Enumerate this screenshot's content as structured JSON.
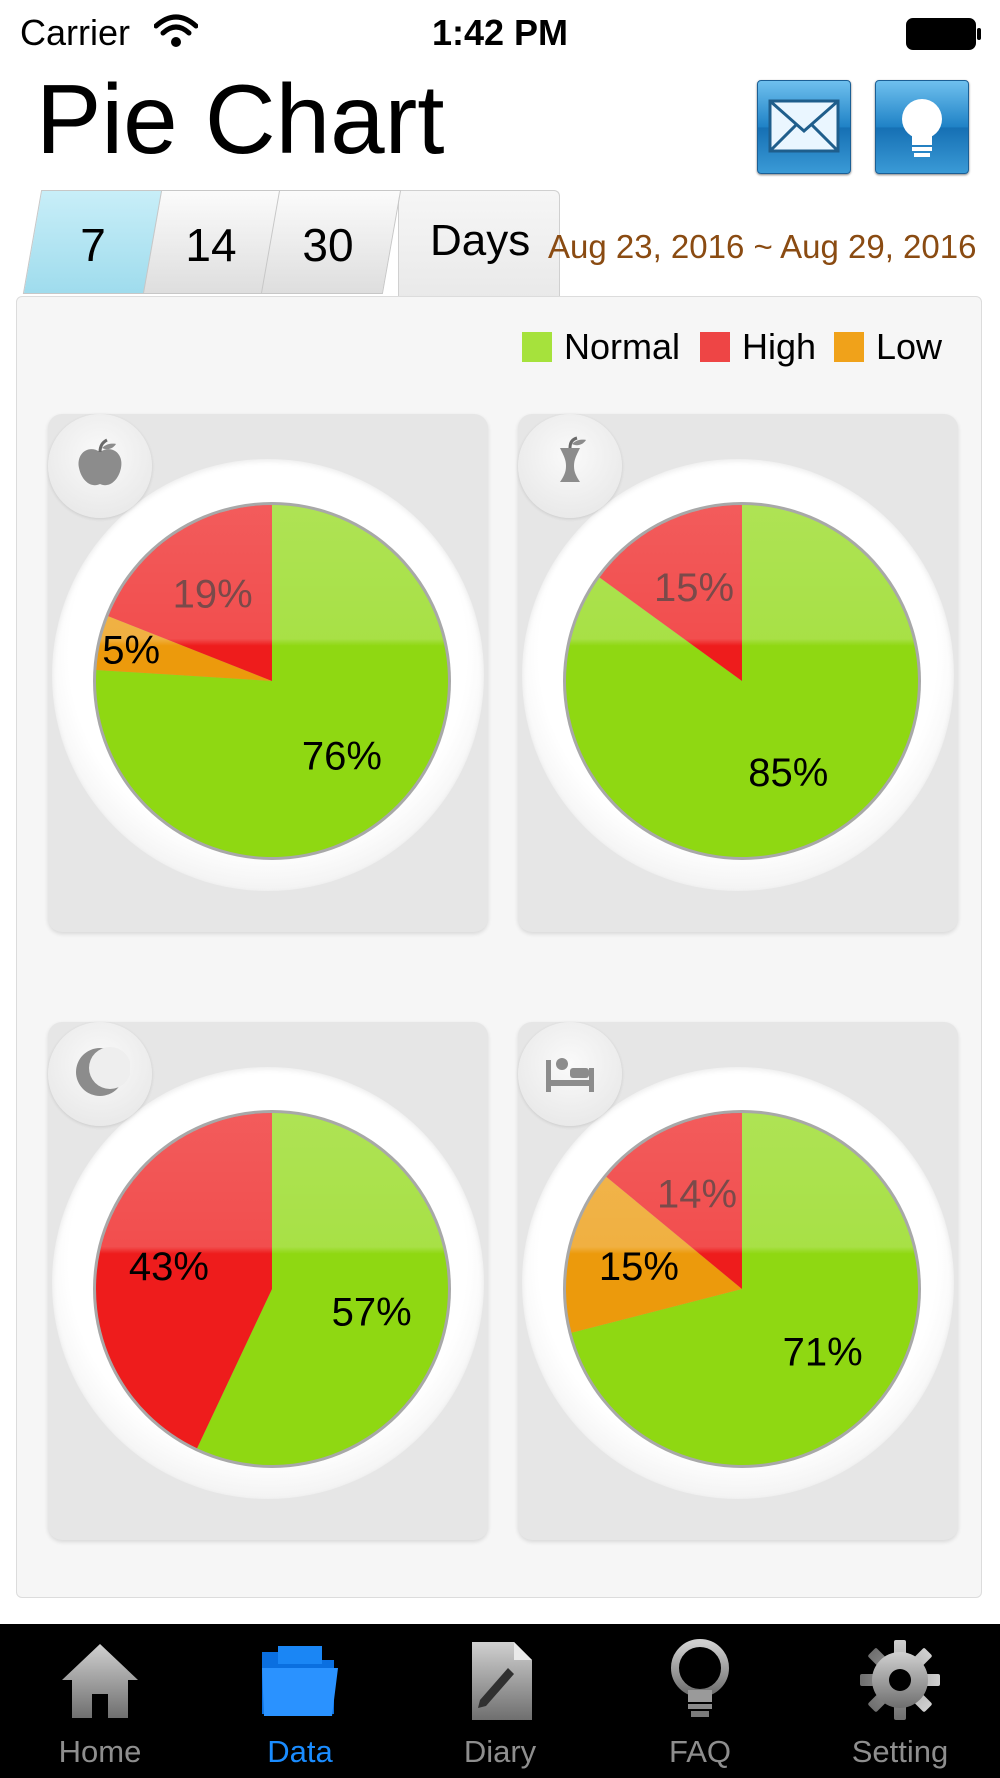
{
  "status_bar": {
    "carrier": "Carrier",
    "time": "1:42 PM"
  },
  "header": {
    "title": "Pie Chart",
    "mail_icon": "mail-icon",
    "tip_icon": "lightbulb-icon"
  },
  "period": {
    "tabs": [
      {
        "label": "7",
        "active": true
      },
      {
        "label": "14",
        "active": false
      },
      {
        "label": "30",
        "active": false
      }
    ],
    "unit": "Days",
    "range": "Aug 23, 2016 ~ Aug 29, 2016"
  },
  "legend": [
    {
      "label": "Normal",
      "color": "#a6e23c"
    },
    {
      "label": "High",
      "color": "#ee4545"
    },
    {
      "label": "Low",
      "color": "#f0a21a"
    }
  ],
  "chart_data": [
    {
      "type": "pie",
      "icon": "apple-icon",
      "slices": [
        {
          "label": "Normal",
          "value": 76,
          "text": "76%"
        },
        {
          "label": "Low",
          "value": 5,
          "text": "5%"
        },
        {
          "label": "High",
          "value": 19,
          "text": "19%"
        }
      ]
    },
    {
      "type": "pie",
      "icon": "apple-core-icon",
      "slices": [
        {
          "label": "Normal",
          "value": 85,
          "text": "85%"
        },
        {
          "label": "High",
          "value": 15,
          "text": "15%"
        }
      ]
    },
    {
      "type": "pie",
      "icon": "moon-icon",
      "slices": [
        {
          "label": "Normal",
          "value": 57,
          "text": "57%"
        },
        {
          "label": "High",
          "value": 43,
          "text": "43%"
        }
      ]
    },
    {
      "type": "pie",
      "icon": "bed-icon",
      "slices": [
        {
          "label": "Normal",
          "value": 71,
          "text": "71%"
        },
        {
          "label": "Low",
          "value": 15,
          "text": "15%"
        },
        {
          "label": "High",
          "value": 14,
          "text": "14%"
        }
      ]
    }
  ],
  "tabbar": [
    {
      "label": "Home",
      "icon": "home-icon",
      "active": false
    },
    {
      "label": "Data",
      "icon": "folder-icon",
      "active": true
    },
    {
      "label": "Diary",
      "icon": "diary-icon",
      "active": false
    },
    {
      "label": "FAQ",
      "icon": "lightbulb-icon",
      "active": false
    },
    {
      "label": "Setting",
      "icon": "gear-icon",
      "active": false
    }
  ]
}
